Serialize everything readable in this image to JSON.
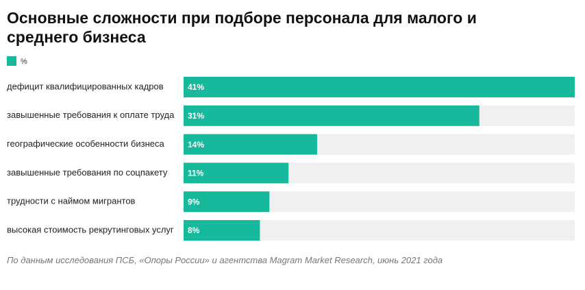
{
  "chart_data": {
    "type": "bar",
    "title": "Основные сложности при подборе персонала для малого и среднего бизнеса",
    "categories": [
      "дефицит квалифицированных кадров",
      "завышенные требования к оплате труда",
      "географические особенности бизнеса",
      "завышенные требования по соцпакету",
      "трудности с наймом мигрантов",
      "высокая стоимость рекрутинговых услуг"
    ],
    "series": [
      {
        "name": "%",
        "color": "#17b99c",
        "values": [
          41,
          31,
          14,
          11,
          9,
          8
        ],
        "value_labels": [
          "41%",
          "31%",
          "14%",
          "11%",
          "9%",
          "8%"
        ]
      }
    ],
    "xlim": [
      0,
      41
    ],
    "note": "По данным исследования ПСБ, «Опоры России» и агентства Magram Market Research, июнь 2021 года"
  }
}
